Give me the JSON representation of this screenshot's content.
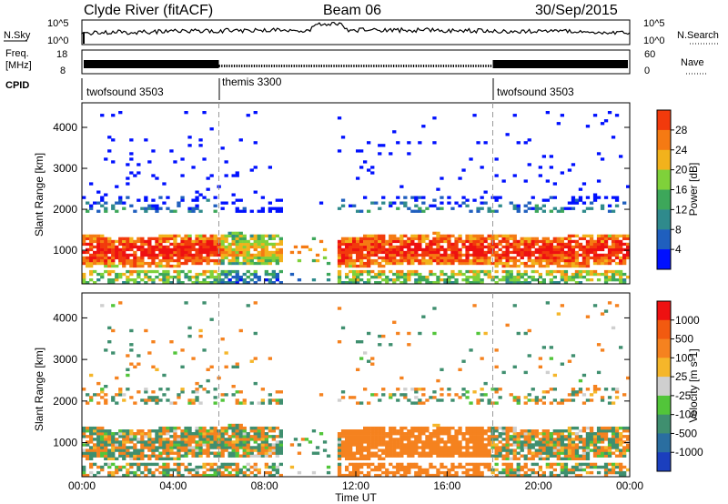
{
  "header": {
    "station": "Clyde River (fitACF)",
    "beam": "Beam 06",
    "date": "30/Sep/2015"
  },
  "strips": {
    "nsky_label": "N.Sky",
    "nsky_ticks": [
      "10^5",
      "10^0"
    ],
    "nsearch_label": "N.Search",
    "nsearch_ticks": [
      "10^5",
      "10^0"
    ],
    "freq_label_1": "Freq.",
    "freq_label_2": "[MHz]",
    "freq_ticks": [
      "18",
      "8"
    ],
    "nave_label": "Nave",
    "nave_ticks": [
      "60",
      "0"
    ],
    "cpid_label": "CPID"
  },
  "cpid_segments": [
    {
      "name": "twofsound 3503",
      "start_hour": 0
    },
    {
      "name": "themis 3300",
      "start_hour": 6
    },
    {
      "name": "twofsound 3503",
      "start_hour": 18
    }
  ],
  "chart_data": [
    {
      "type": "heatmap",
      "ylabel": "Slant Range [km]",
      "xlabel": "Time UT",
      "x_ticks": [
        "00:00",
        "04:00",
        "08:00",
        "12:00",
        "16:00",
        "20:00",
        "00:00"
      ],
      "x_range_hours": [
        0,
        24
      ],
      "y_ticks": [
        1000,
        2000,
        3000,
        4000
      ],
      "y_range_km": [
        180,
        4600
      ],
      "colorbar_label": "Power [dB]",
      "colorbar_ticks": [
        "4",
        "8",
        "12",
        "16",
        "20",
        "24",
        "28"
      ],
      "colorbar_range": [
        0,
        32
      ],
      "colors": [
        "#0010ff",
        "#1f5fbe",
        "#2f8a8c",
        "#3da75a",
        "#7fd13a",
        "#f2b21c",
        "#f57a13",
        "#f23a0c",
        "#ee1111"
      ]
    },
    {
      "type": "heatmap",
      "ylabel": "Slant Range [km]",
      "xlabel": "Time UT",
      "x_ticks": [
        "00:00",
        "04:00",
        "08:00",
        "12:00",
        "16:00",
        "20:00",
        "00:00"
      ],
      "x_range_hours": [
        0,
        24
      ],
      "y_ticks": [
        1000,
        2000,
        3000,
        4000
      ],
      "y_range_km": [
        180,
        4600
      ],
      "colorbar_label": "Velocity [m s-1]",
      "colorbar_ticks": [
        "1000",
        "500",
        "100",
        "25",
        "-25",
        "-100",
        "-500",
        "-1000"
      ],
      "colors": [
        "#1b3fbe",
        "#2a6ea0",
        "#3f8f6f",
        "#52c53a",
        "#cfcfcf",
        "#f5b62a",
        "#f5821f",
        "#f25a10",
        "#ee1111"
      ]
    }
  ]
}
